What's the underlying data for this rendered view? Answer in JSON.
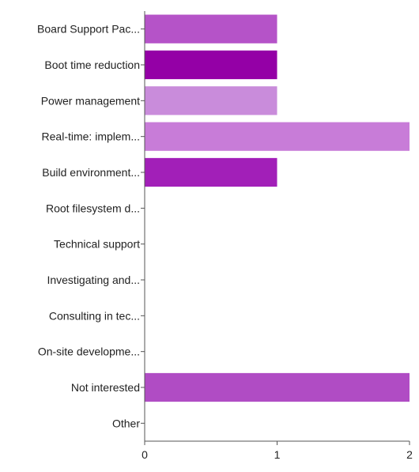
{
  "chart_data": {
    "type": "bar",
    "orientation": "horizontal",
    "categories": [
      "Board Support Pac...",
      "Boot time reduction",
      "Power management",
      "Real-time: implem...",
      "Build environment...",
      "Root filesystem d...",
      "Technical support",
      "Investigating and...",
      "Consulting in tec...",
      "On-site developme...",
      "Not interested",
      "Other"
    ],
    "values": [
      1,
      1,
      1,
      2,
      1,
      0,
      0,
      0,
      0,
      0,
      2,
      0
    ],
    "colors": [
      "#b553c8",
      "#9400a6",
      "#c98cdb",
      "#c87cd8",
      "#a21fb8",
      "#b553c8",
      "#b553c8",
      "#b553c8",
      "#b553c8",
      "#b553c8",
      "#b04cc4",
      "#b553c8"
    ],
    "xlim": [
      0,
      2
    ],
    "xticks": [
      0,
      1,
      2
    ],
    "grid": false,
    "legend": "none"
  }
}
